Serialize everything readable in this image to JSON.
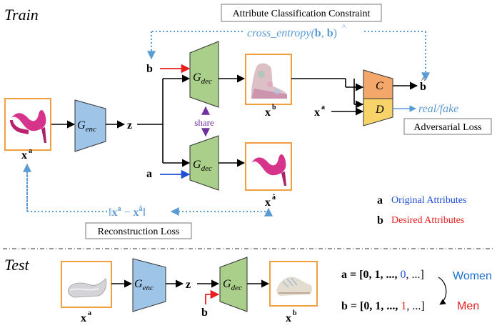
{
  "sections": {
    "train": "Train",
    "test": "Test"
  },
  "constraint_box": "Attribute Classification Constraint",
  "ce_formula": {
    "pre": "cross_entropy(",
    "b": "b",
    "comma": ", ",
    "bhat_base": "b",
    "bhat_hat": "^",
    "post": ")"
  },
  "vars": {
    "b": "b",
    "a": "a",
    "z": "z",
    "x": "x",
    "sup_a": "a",
    "sup_b": "b",
    "sup_ahat": "â",
    "bhat_base": "b",
    "bhat_hat": "^"
  },
  "blocks": {
    "enc_main": "G",
    "enc_sub": "enc",
    "dec_main": "G",
    "dec_sub": "dec",
    "C": "C",
    "D": "D"
  },
  "share": "share",
  "real_fake": "real/fake",
  "adversarial_loss": "Adversarial Loss",
  "recon_formula": {
    "open": "‖",
    "x1": "x",
    "s1": "a",
    "minus": " − ",
    "x2": "x",
    "s2": "â",
    "close": "‖"
  },
  "reconstruction_loss": "Reconstruction Loss",
  "legend": {
    "a_symbol": "a",
    "a_text": "Original Attributes",
    "b_symbol": "b",
    "b_text": "Desired Attributes"
  },
  "test": {
    "a_eq": "a = [0, 1, ..., ",
    "a_highlight": "0",
    "a_tail": ", ...]",
    "b_eq": "b = [0, 1, ..., ",
    "b_highlight": "1",
    "b_tail": ", ...]",
    "women": "Women",
    "men": "Men"
  },
  "colors": {
    "encoder": "#9ec5e8",
    "decoder": "#a9cf8a",
    "classifier": "#f4a76b",
    "discriminator": "#f7d36a",
    "loss_line": "#5b9bd5",
    "share": "#7030a0",
    "red": "#e8201f",
    "blue": "#2050d8",
    "image_frame": "#f0a040"
  }
}
